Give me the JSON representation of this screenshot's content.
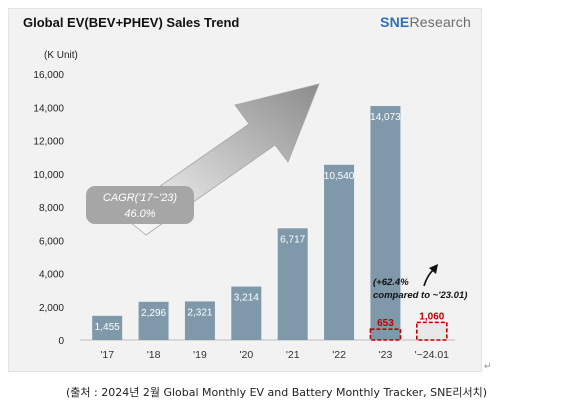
{
  "title": "Global EV(BEV+PHEV)  Sales Trend",
  "brand": {
    "strong": "SNE",
    "rest": "Research"
  },
  "caption": "(출처 : 2024년  2월  Global Monthly EV and Battery Monthly Tracker, SNE리서치)",
  "return_mark": "↵",
  "colors": {
    "bar": "#7f99ab",
    "highlight": "#c00000",
    "background": "#f2f2f2",
    "cagr_box": "#a6a6a6"
  },
  "chart_data": {
    "type": "bar",
    "unit_label": "(K Unit)",
    "ylim": [
      0,
      16000
    ],
    "yticks": [
      0,
      2000,
      4000,
      6000,
      8000,
      10000,
      12000,
      14000,
      16000
    ],
    "ytick_labels": [
      "0",
      "2,000",
      "4,000",
      "6,000",
      "8,000",
      "10,000",
      "12,000",
      "14,000",
      "16,000"
    ],
    "grid": false,
    "categories": [
      "'17",
      "'18",
      "'19",
      "'20",
      "'21",
      "'22",
      "'23",
      "'~24.01"
    ],
    "values": [
      1455,
      2296,
      2321,
      3214,
      6717,
      10540,
      14073,
      null
    ],
    "value_labels": [
      "1,455",
      "2,296",
      "2,321",
      "3,214",
      "6,717",
      "10,540",
      "14,073",
      ""
    ],
    "highlight_bars": [
      {
        "category": "'23",
        "value": 653,
        "label": "653"
      },
      {
        "category": "'~24.01",
        "value": 1060,
        "label": "1,060"
      }
    ],
    "annotations": {
      "cagr_line1": "CAGR('17~'23)",
      "cagr_line2": "46.0%",
      "growth_line1": "(+62.4%",
      "growth_line2": "compared to ~'23.01)"
    }
  }
}
